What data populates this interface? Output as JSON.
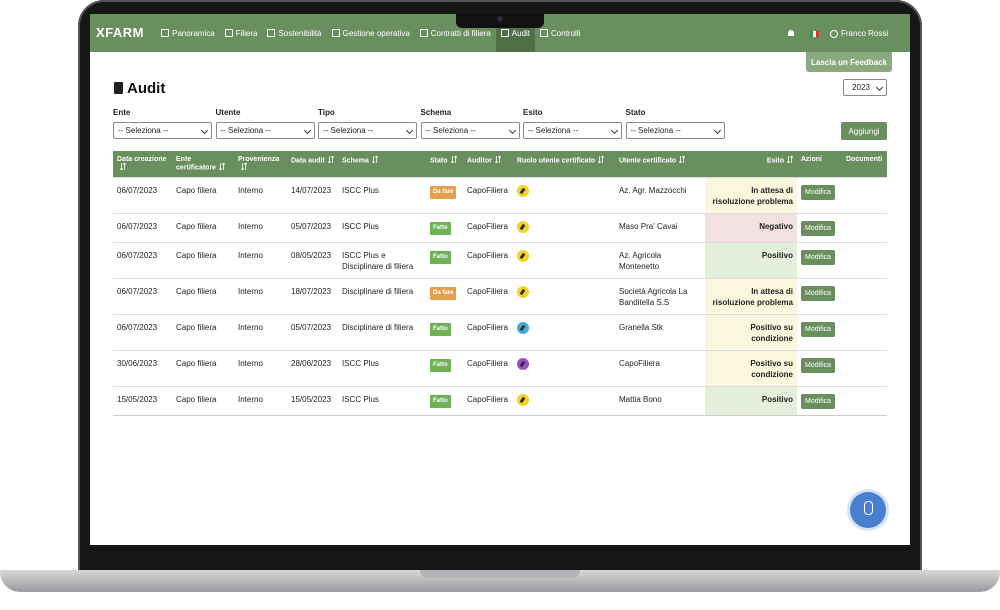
{
  "header": {
    "logo": "XFARM",
    "nav": [
      "Panoramica",
      "Filiera",
      "Sostenibilità",
      "Gestione operativa",
      "Contratti di filiera",
      "Audit",
      "Controlli"
    ],
    "active": "Audit",
    "user": "Franco Rossi",
    "feedback": "Lascia un Feedback"
  },
  "page": {
    "title": "Audit",
    "year": "2023",
    "add_button": "Aggiungi"
  },
  "filters": [
    {
      "label": "Ente",
      "placeholder": "-- Seleziona --"
    },
    {
      "label": "Utente",
      "placeholder": "-- Seleziona --"
    },
    {
      "label": "Tipo",
      "placeholder": "-- Seleziona --"
    },
    {
      "label": "Schema",
      "placeholder": "-- Seleziona --"
    },
    {
      "label": "Esito",
      "placeholder": "-- Seleziona --"
    },
    {
      "label": "Stato",
      "placeholder": "-- Seleziona --"
    }
  ],
  "table": {
    "columns": [
      "Data creazione",
      "Ente certificatore",
      "Provenienza",
      "Data audit",
      "Schema",
      "Stato",
      "Auditor",
      "Ruolo utente certificato",
      "Utente certificato",
      "Esito",
      "Azioni",
      "Documenti"
    ],
    "rows": [
      {
        "creazione": "06/07/2023",
        "ente": "Capo filiera",
        "provenienza": "Interno",
        "data_audit": "14/07/2023",
        "schema": "ISCC Plus",
        "stato": "Da fare",
        "stato_color": "#e5a04b",
        "auditor": "CapoFiliera",
        "ruolo_color": "#f2d42a",
        "utente": "Az. Agr. Mazzocchi",
        "esito": "In attesa di risoluzione problema",
        "esito_bg": "#fbf7de",
        "azione": "Modifica"
      },
      {
        "creazione": "06/07/2023",
        "ente": "Capo filiera",
        "provenienza": "Interno",
        "data_audit": "05/07/2023",
        "schema": "ISCC Plus",
        "stato": "Fatto",
        "stato_color": "#6fb255",
        "auditor": "CapoFiliera",
        "ruolo_color": "#f2d42a",
        "utente": "Maso Pra' Cavai",
        "esito": "Negativo",
        "esito_bg": "#f3e0e0",
        "azione": "Modifica"
      },
      {
        "creazione": "06/07/2023",
        "ente": "Capo filiera",
        "provenienza": "Interno",
        "data_audit": "08/05/2023",
        "schema": "ISCC Plus e Disciplinare di filiera",
        "stato": "Fatto",
        "stato_color": "#6fb255",
        "auditor": "CapoFiliera",
        "ruolo_color": "#f2d42a",
        "utente": "Az. Agricola Montenetto",
        "esito": "Positivo",
        "esito_bg": "#e4efdb",
        "azione": "Modifica"
      },
      {
        "creazione": "06/07/2023",
        "ente": "Capo filiera",
        "provenienza": "Interno",
        "data_audit": "18/07/2023",
        "schema": "Disciplinare di filiera",
        "stato": "Da fare",
        "stato_color": "#e5a04b",
        "auditor": "CapoFiliera",
        "ruolo_color": "#f2d42a",
        "utente": "Società Agricola La Banditella S.S",
        "esito": "In attesa di risoluzione problema",
        "esito_bg": "#fbf7de",
        "azione": "Modifica"
      },
      {
        "creazione": "06/07/2023",
        "ente": "Capo filiera",
        "provenienza": "Interno",
        "data_audit": "05/07/2023",
        "schema": "Disciplinare di filiera",
        "stato": "Fatto",
        "stato_color": "#6fb255",
        "auditor": "CapoFiliera",
        "ruolo_color": "#4aa8dc",
        "utente": "Granella Stk",
        "esito": "Positivo su condizione",
        "esito_bg": "#fbf7de",
        "azione": "Modifica"
      },
      {
        "creazione": "30/06/2023",
        "ente": "Capo filiera",
        "provenienza": "Interno",
        "data_audit": "28/06/2023",
        "schema": "ISCC Plus",
        "stato": "Fatto",
        "stato_color": "#6fb255",
        "auditor": "CapoFiliera",
        "ruolo_color": "#9b4fc9",
        "utente": "CapoFiliera",
        "esito": "Positivo su condizione",
        "esito_bg": "#fbf7de",
        "azione": "Modifica"
      },
      {
        "creazione": "15/05/2023",
        "ente": "Capo filiera",
        "provenienza": "Interno",
        "data_audit": "15/05/2023",
        "schema": "ISCC Plus",
        "stato": "Fatto",
        "stato_color": "#6fb255",
        "auditor": "CapoFiliera",
        "ruolo_color": "#f2d42a",
        "utente": "Mattia Bono",
        "esito": "Positivo",
        "esito_bg": "#e4efdb",
        "azione": "Modifica"
      }
    ]
  }
}
